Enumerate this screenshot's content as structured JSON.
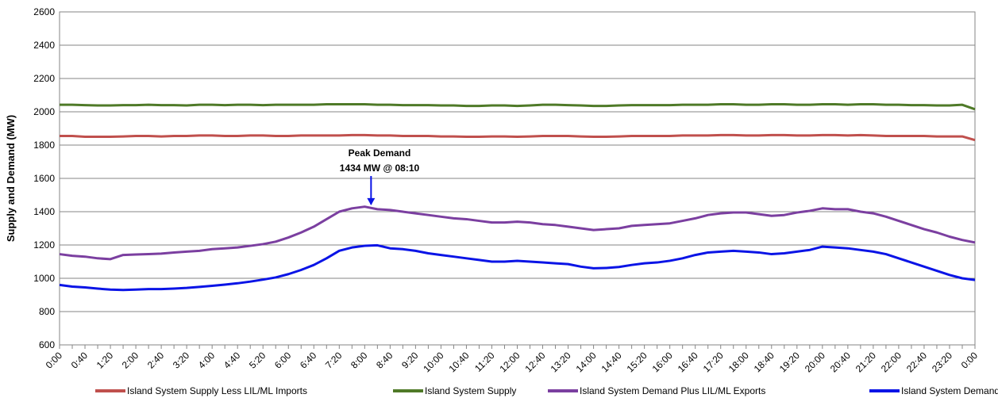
{
  "chart_data": {
    "type": "line",
    "y_label": "Supply and Demand (MW)",
    "annotation": [
      "Peak Demand",
      "1434 MW @ 08:10"
    ],
    "categories": [
      "0:00",
      null,
      "0:40",
      null,
      "1:20",
      null,
      "2:00",
      null,
      "2:40",
      null,
      "3:20",
      null,
      "4:00",
      null,
      "4:40",
      null,
      "5:20",
      null,
      "6:00",
      null,
      "6:40",
      null,
      "7:20",
      null,
      "8:00",
      null,
      "8:40",
      null,
      "9:20",
      null,
      "10:00",
      null,
      "10:40",
      null,
      "11:20",
      null,
      "12:00",
      null,
      "12:40",
      null,
      "13:20",
      null,
      "14:00",
      null,
      "14:40",
      null,
      "15:20",
      null,
      "16:00",
      null,
      "16:40",
      null,
      "17:20",
      null,
      "18:00",
      null,
      "18:40",
      null,
      "19:20",
      null,
      "20:00",
      null,
      "20:40",
      null,
      "21:20",
      null,
      "22:00",
      null,
      "22:40",
      null,
      "23:20",
      null,
      "0:00"
    ],
    "ylim": [
      600,
      2600
    ],
    "yticks": [
      600,
      800,
      1000,
      1200,
      1400,
      1600,
      1800,
      2000,
      2200,
      2400,
      2600
    ],
    "grid": true,
    "legend": "bottom",
    "series": [
      {
        "name": "Island System Supply Less LIL/ML Imports",
        "color": "#c0504d",
        "values": [
          1855,
          1855,
          1850,
          1850,
          1850,
          1852,
          1855,
          1855,
          1852,
          1855,
          1855,
          1858,
          1858,
          1855,
          1855,
          1858,
          1858,
          1855,
          1855,
          1858,
          1858,
          1858,
          1858,
          1860,
          1860,
          1858,
          1858,
          1855,
          1855,
          1855,
          1852,
          1852,
          1850,
          1850,
          1852,
          1852,
          1850,
          1852,
          1855,
          1855,
          1855,
          1852,
          1850,
          1850,
          1852,
          1855,
          1855,
          1855,
          1855,
          1858,
          1858,
          1858,
          1860,
          1860,
          1858,
          1858,
          1860,
          1860,
          1858,
          1858,
          1860,
          1860,
          1858,
          1860,
          1858,
          1855,
          1855,
          1855,
          1855,
          1852,
          1852,
          1852,
          1830
        ]
      },
      {
        "name": "Island System Supply",
        "color": "#4f7a28",
        "values": [
          2042,
          2042,
          2040,
          2038,
          2038,
          2040,
          2040,
          2042,
          2040,
          2040,
          2038,
          2042,
          2042,
          2040,
          2042,
          2042,
          2040,
          2042,
          2042,
          2042,
          2042,
          2045,
          2045,
          2045,
          2045,
          2042,
          2042,
          2040,
          2040,
          2040,
          2038,
          2038,
          2035,
          2035,
          2038,
          2038,
          2035,
          2038,
          2042,
          2042,
          2040,
          2038,
          2035,
          2035,
          2038,
          2040,
          2040,
          2040,
          2040,
          2042,
          2042,
          2042,
          2045,
          2045,
          2042,
          2042,
          2045,
          2045,
          2042,
          2042,
          2045,
          2045,
          2042,
          2045,
          2045,
          2042,
          2042,
          2040,
          2040,
          2038,
          2038,
          2042,
          2015
        ]
      },
      {
        "name": "Island System Demand Plus LIL/ML Exports",
        "color": "#7b3fa0",
        "values": [
          1145,
          1135,
          1130,
          1120,
          1115,
          1140,
          1143,
          1145,
          1148,
          1155,
          1160,
          1165,
          1175,
          1180,
          1185,
          1195,
          1205,
          1220,
          1245,
          1275,
          1310,
          1355,
          1400,
          1420,
          1430,
          1415,
          1410,
          1400,
          1390,
          1380,
          1370,
          1360,
          1355,
          1345,
          1335,
          1335,
          1340,
          1335,
          1325,
          1320,
          1310,
          1300,
          1290,
          1295,
          1300,
          1315,
          1320,
          1325,
          1330,
          1345,
          1360,
          1380,
          1390,
          1395,
          1395,
          1385,
          1375,
          1380,
          1395,
          1405,
          1420,
          1415,
          1415,
          1400,
          1390,
          1370,
          1345,
          1320,
          1295,
          1275,
          1250,
          1230,
          1215
        ]
      },
      {
        "name": "Island System Demand",
        "color": "#0a14e6",
        "values": [
          960,
          950,
          945,
          938,
          932,
          930,
          932,
          935,
          935,
          938,
          942,
          948,
          955,
          962,
          970,
          980,
          992,
          1005,
          1025,
          1050,
          1080,
          1120,
          1165,
          1185,
          1195,
          1198,
          1180,
          1175,
          1165,
          1150,
          1140,
          1130,
          1120,
          1110,
          1100,
          1100,
          1105,
          1100,
          1095,
          1090,
          1085,
          1070,
          1060,
          1062,
          1068,
          1080,
          1090,
          1095,
          1105,
          1120,
          1140,
          1155,
          1160,
          1165,
          1160,
          1155,
          1145,
          1150,
          1160,
          1170,
          1190,
          1185,
          1180,
          1170,
          1160,
          1145,
          1120,
          1095,
          1070,
          1045,
          1020,
          1000,
          990
        ]
      }
    ]
  }
}
